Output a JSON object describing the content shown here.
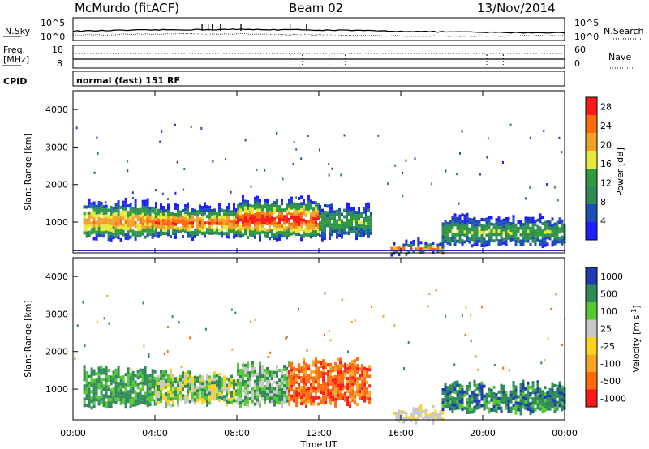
{
  "header": {
    "station": "McMurdo (fitACF)",
    "beam": "Beam 02",
    "date": "13/Nov/2014"
  },
  "noise_panel": {
    "left_label": "N.Sky",
    "right_label": "N.Search",
    "left_ticks": [
      "10^5",
      "10^0"
    ],
    "right_ticks": [
      "10^5",
      "10^0"
    ]
  },
  "freq_panel": {
    "left_label_1": "Freq.",
    "left_label_2": "[MHz]",
    "right_label": "Nave",
    "left_ticks": [
      "18",
      "8"
    ],
    "right_ticks": [
      "60",
      "0"
    ]
  },
  "cpid": {
    "label": "CPID",
    "value": "normal (fast) 151 RF"
  },
  "colors": {
    "power": [
      "#1e1eff",
      "#1c4fb5",
      "#2e8b57",
      "#2f9a40",
      "#e8e83a",
      "#f0a12a",
      "#ff6a0d",
      "#ff1a1a"
    ],
    "velocity": [
      "#ff1a1a",
      "#ff6a0d",
      "#f5a623",
      "#ffd21e",
      "#c8c8c8",
      "#55c832",
      "#2e8b57",
      "#1e3cb4"
    ]
  },
  "chart_data": [
    {
      "type": "heatmap",
      "title": "",
      "xlabel": "",
      "ylabel": "Slant Range [km]",
      "xlim": [
        "00:00",
        "24:00"
      ],
      "ylim": [
        180,
        4500
      ],
      "yticks": [
        "1000",
        "2000",
        "3000",
        "4000"
      ],
      "colorbar": {
        "label": "Power [dB]",
        "ticks": [
          "4",
          "8",
          "12",
          "16",
          "20",
          "24",
          "28"
        ],
        "range": [
          0,
          30
        ]
      },
      "echo_regions": [
        {
          "t_start": 0.5,
          "t_end": 4.0,
          "range_low": 600,
          "range_high": 1500,
          "level": "12-20 dB",
          "core_db": 24
        },
        {
          "t_start": 4.0,
          "t_end": 8.0,
          "range_low": 650,
          "range_high": 1400,
          "level": "12-24 dB",
          "core_db": 26
        },
        {
          "t_start": 8.0,
          "t_end": 12.0,
          "range_low": 600,
          "range_high": 1600,
          "level": "16-30 dB",
          "core_db": 30
        },
        {
          "t_start": 12.0,
          "t_end": 14.5,
          "range_low": 650,
          "range_high": 1400,
          "level": "8-16 dB",
          "core_db": 14
        },
        {
          "t_start": 15.5,
          "t_end": 18.0,
          "range_low": 200,
          "range_high": 450,
          "level": "20-28 dB",
          "core_db": 26
        },
        {
          "t_start": 18.0,
          "t_end": 24.0,
          "range_low": 450,
          "range_high": 1100,
          "level": "4-16 dB",
          "core_db": 14
        }
      ]
    },
    {
      "type": "heatmap",
      "title": "",
      "xlabel": "Time UT",
      "ylabel": "Slant Range [km]",
      "xlim": [
        "00:00",
        "24:00"
      ],
      "ylim": [
        180,
        4500
      ],
      "xticks": [
        "00:00",
        "04:00",
        "08:00",
        "12:00",
        "16:00",
        "20:00",
        "00:00"
      ],
      "yticks": [
        "1000",
        "2000",
        "3000",
        "4000"
      ],
      "colorbar": {
        "label": "Velocity [m s^-1]",
        "ticks": [
          "1000",
          "500",
          "100",
          "25",
          "-25",
          "-100",
          "-500",
          "-1000"
        ]
      },
      "echo_regions": [
        {
          "t_start": 0.5,
          "t_end": 4.0,
          "range_low": 600,
          "range_high": 1500,
          "velocity": "100 to 500"
        },
        {
          "t_start": 4.0,
          "t_end": 8.0,
          "range_low": 650,
          "range_high": 1400,
          "velocity": "-100 to 100"
        },
        {
          "t_start": 8.0,
          "t_end": 10.5,
          "range_low": 600,
          "range_high": 1600,
          "velocity": "-25 to 100"
        },
        {
          "t_start": 10.5,
          "t_end": 14.5,
          "range_low": 650,
          "range_high": 1700,
          "velocity": "-500 to -100"
        },
        {
          "t_start": 15.5,
          "t_end": 18.0,
          "range_low": 200,
          "range_high": 450,
          "velocity": "-25 to 25"
        },
        {
          "t_start": 18.0,
          "t_end": 24.0,
          "range_low": 450,
          "range_high": 1100,
          "velocity": "25 to 500"
        }
      ]
    }
  ]
}
